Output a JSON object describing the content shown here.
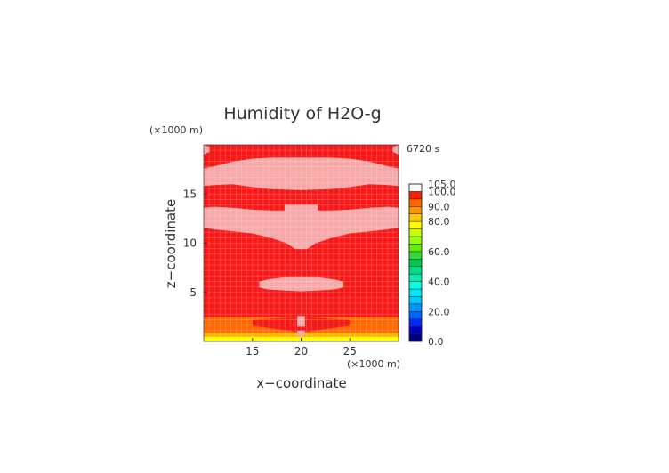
{
  "chart_data": {
    "type": "heatmap",
    "title": "Humidity of H2O-g",
    "time_label": "6720 s",
    "xlabel": "x−coordinate",
    "ylabel": "z−coordinate",
    "x_unit": "(×1000 m)",
    "y_unit": "(×1000 m)",
    "xlim": [
      10,
      30
    ],
    "ylim": [
      0,
      20
    ],
    "x_ticks": [
      15,
      20,
      25
    ],
    "y_ticks": [
      5,
      10,
      15
    ],
    "grid": true,
    "colorbar": {
      "range": [
        0,
        105
      ],
      "tick_labels": [
        "105.0",
        "100.0",
        "90.0",
        "80.0",
        "60.0",
        "40.0",
        "20.0",
        "0.0"
      ],
      "tick_values": [
        105,
        100,
        90,
        80,
        60,
        40,
        20,
        0
      ],
      "bands": [
        {
          "from": 0,
          "to": 5,
          "color": "#00007f"
        },
        {
          "from": 5,
          "to": 10,
          "color": "#0000c8"
        },
        {
          "from": 10,
          "to": 15,
          "color": "#0028ff"
        },
        {
          "from": 15,
          "to": 20,
          "color": "#0064ff"
        },
        {
          "from": 20,
          "to": 25,
          "color": "#0096ff"
        },
        {
          "from": 25,
          "to": 30,
          "color": "#00c8ff"
        },
        {
          "from": 30,
          "to": 35,
          "color": "#00e6ff"
        },
        {
          "from": 35,
          "to": 40,
          "color": "#00ffe6"
        },
        {
          "from": 40,
          "to": 45,
          "color": "#00f0b4"
        },
        {
          "from": 45,
          "to": 50,
          "color": "#00dc82"
        },
        {
          "from": 50,
          "to": 55,
          "color": "#00c850"
        },
        {
          "from": 55,
          "to": 60,
          "color": "#32dc32"
        },
        {
          "from": 60,
          "to": 65,
          "color": "#64f000"
        },
        {
          "from": 65,
          "to": 70,
          "color": "#96ff00"
        },
        {
          "from": 70,
          "to": 75,
          "color": "#c8ff00"
        },
        {
          "from": 75,
          "to": 80,
          "color": "#ffff00"
        },
        {
          "from": 80,
          "to": 85,
          "color": "#ffc800"
        },
        {
          "from": 85,
          "to": 90,
          "color": "#ff9600"
        },
        {
          "from": 90,
          "to": 95,
          "color": "#ff6400"
        },
        {
          "from": 95,
          "to": 100,
          "color": "#ff1e00"
        },
        {
          "from": 100,
          "to": 105,
          "color": "#ffffff"
        }
      ]
    },
    "colors": {
      "saturated": "#f81818",
      "supersaturated": "#f7a8a8",
      "band_orange": "#ff6a00",
      "band_amber": "#ffb000",
      "band_yellow": "#ffff00",
      "grid": "#ffffff"
    },
    "regions": [
      {
        "label": "base",
        "value": 98
      },
      {
        "label": "top-left cap",
        "value": 101,
        "x": [
          10,
          10.5
        ],
        "z": [
          19,
          19.5,
          20
        ]
      },
      {
        "label": "top-right cap",
        "value": 101,
        "x": [
          29.5,
          30
        ],
        "z": [
          19,
          19.5,
          20
        ]
      },
      {
        "label": "upper band",
        "value": 101,
        "top": [
          [
            10,
            17.6
          ],
          [
            11,
            17.8
          ],
          [
            13,
            18.3
          ],
          [
            15,
            18.6
          ],
          [
            17,
            18.7
          ],
          [
            20,
            18.7
          ],
          [
            23,
            18.7
          ],
          [
            25,
            18.6
          ],
          [
            27,
            18.3
          ],
          [
            29,
            17.8
          ],
          [
            30,
            17.6
          ]
        ],
        "bottom": [
          [
            10,
            15.8
          ],
          [
            11,
            15.9
          ],
          [
            13,
            16.0
          ],
          [
            15,
            15.7
          ],
          [
            17,
            15.5
          ],
          [
            20,
            15.4
          ],
          [
            23,
            15.5
          ],
          [
            25,
            15.7
          ],
          [
            27,
            16.0
          ],
          [
            29,
            15.9
          ],
          [
            30,
            15.8
          ]
        ]
      },
      {
        "label": "middle band",
        "value": 101,
        "top": [
          [
            10,
            13.6
          ],
          [
            11,
            13.7
          ],
          [
            13,
            13.6
          ],
          [
            15,
            13.4
          ],
          [
            17,
            13.3
          ],
          [
            18.3,
            13.3
          ],
          [
            18.3,
            13.9
          ],
          [
            21.7,
            13.9
          ],
          [
            21.7,
            13.3
          ],
          [
            23,
            13.3
          ],
          [
            25,
            13.4
          ],
          [
            27,
            13.6
          ],
          [
            29,
            13.7
          ],
          [
            30,
            13.6
          ]
        ],
        "bottom": [
          [
            10,
            11.6
          ],
          [
            11,
            11.4
          ],
          [
            13,
            11.2
          ],
          [
            15,
            11.0
          ],
          [
            17,
            10.5
          ],
          [
            18.5,
            10.0
          ],
          [
            19.4,
            9.4
          ],
          [
            20.6,
            9.4
          ],
          [
            21.5,
            10.0
          ],
          [
            23,
            10.5
          ],
          [
            25,
            11.0
          ],
          [
            27,
            11.2
          ],
          [
            29,
            11.4
          ],
          [
            30,
            11.6
          ]
        ]
      },
      {
        "label": "lower band",
        "value": 101,
        "top": [
          [
            15.7,
            6.1
          ],
          [
            16.5,
            6.3
          ],
          [
            18,
            6.5
          ],
          [
            20,
            6.6
          ],
          [
            22,
            6.5
          ],
          [
            23.5,
            6.3
          ],
          [
            24.3,
            6.1
          ]
        ],
        "bottom": [
          [
            15.7,
            5.5
          ],
          [
            16.5,
            5.3
          ],
          [
            18,
            5.2
          ],
          [
            20,
            5.1
          ],
          [
            22,
            5.2
          ],
          [
            23.5,
            5.3
          ],
          [
            24.3,
            5.5
          ]
        ]
      },
      {
        "label": "surface orange",
        "value": 93,
        "z_range": [
          0.5,
          2.5
        ]
      },
      {
        "label": "surface amber",
        "value": 86,
        "z_range": [
          0.3,
          0.9
        ]
      },
      {
        "label": "surface yellow",
        "value": 77,
        "z_range": [
          0,
          0.45
        ]
      },
      {
        "label": "central wedge",
        "value": 98,
        "x_range": [
          15,
          25
        ],
        "z_range": [
          0.9,
          2.4
        ]
      },
      {
        "label": "central column",
        "value": 101,
        "x_range": [
          19.6,
          20.4
        ],
        "z_range": [
          0.5,
          2.7
        ]
      }
    ]
  }
}
